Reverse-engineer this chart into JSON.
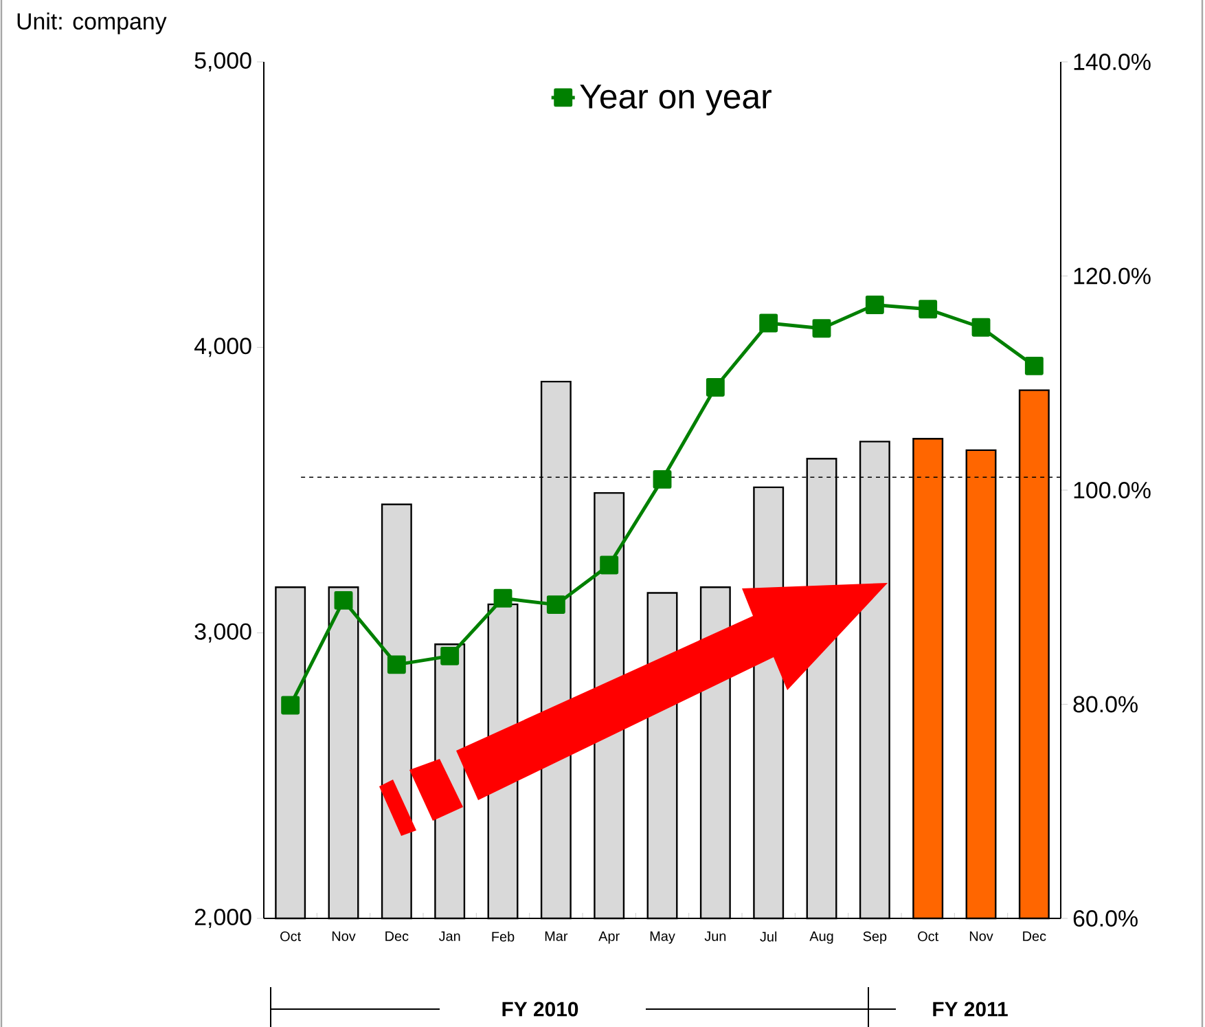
{
  "chart_data": {
    "type": "bar",
    "ylabel": "Unit: company",
    "categories": [
      "Oct",
      "Nov",
      "Dec",
      "Jan",
      "Feb",
      "Mar",
      "Apr",
      "May",
      "Jun",
      "Jul",
      "Aug",
      "Sep",
      "Oct",
      "Nov",
      "Dec"
    ],
    "series": [
      {
        "colors": [
          "#d9d9d9",
          "#d9d9d9",
          "#d9d9d9",
          "#d9d9d9",
          "#d9d9d9",
          "#d9d9d9",
          "#d9d9d9",
          "#d9d9d9",
          "#d9d9d9",
          "#d9d9d9",
          "#d9d9d9",
          "#d9d9d9",
          "#ff6600",
          "#ff6600",
          "#ff6600"
        ],
        "values": [
          3160,
          3160,
          3450,
          2960,
          3100,
          3880,
          3490,
          3140,
          3160,
          3510,
          3610,
          3670,
          3680,
          3640,
          3850
        ]
      },
      {
        "type": "line",
        "name": "Year on year",
        "color": "#008000",
        "axis": "y2",
        "values": [
          79.9,
          89.7,
          83.7,
          84.5,
          89.9,
          89.3,
          93.0,
          101.0,
          109.6,
          115.6,
          115.1,
          117.3,
          116.9,
          115.2,
          111.6
        ]
      }
    ],
    "ylim": [
      2000,
      5000
    ],
    "yticks": [
      {
        "value": 2000,
        "label": "2,000"
      },
      {
        "value": 3000,
        "label": "3,000"
      },
      {
        "value": 4000,
        "label": "4,000"
      },
      {
        "value": 5000,
        "label": "5,000"
      }
    ],
    "y2lim": [
      60,
      140
    ],
    "y2ticks": [
      {
        "value": 60,
        "label": "60.0%"
      },
      {
        "value": 80,
        "label": "80.0%"
      },
      {
        "value": 100,
        "label": "100.0%"
      },
      {
        "value": 120,
        "label": "120.0%"
      },
      {
        "value": 140,
        "label": "140.0%"
      }
    ],
    "ref_lines": [
      {
        "axis": "y2",
        "value": 101.2,
        "line_style": "dashed"
      }
    ],
    "annotations": [
      "FY 2010",
      "FY 2011"
    ],
    "marker": "square",
    "legend": "top"
  }
}
